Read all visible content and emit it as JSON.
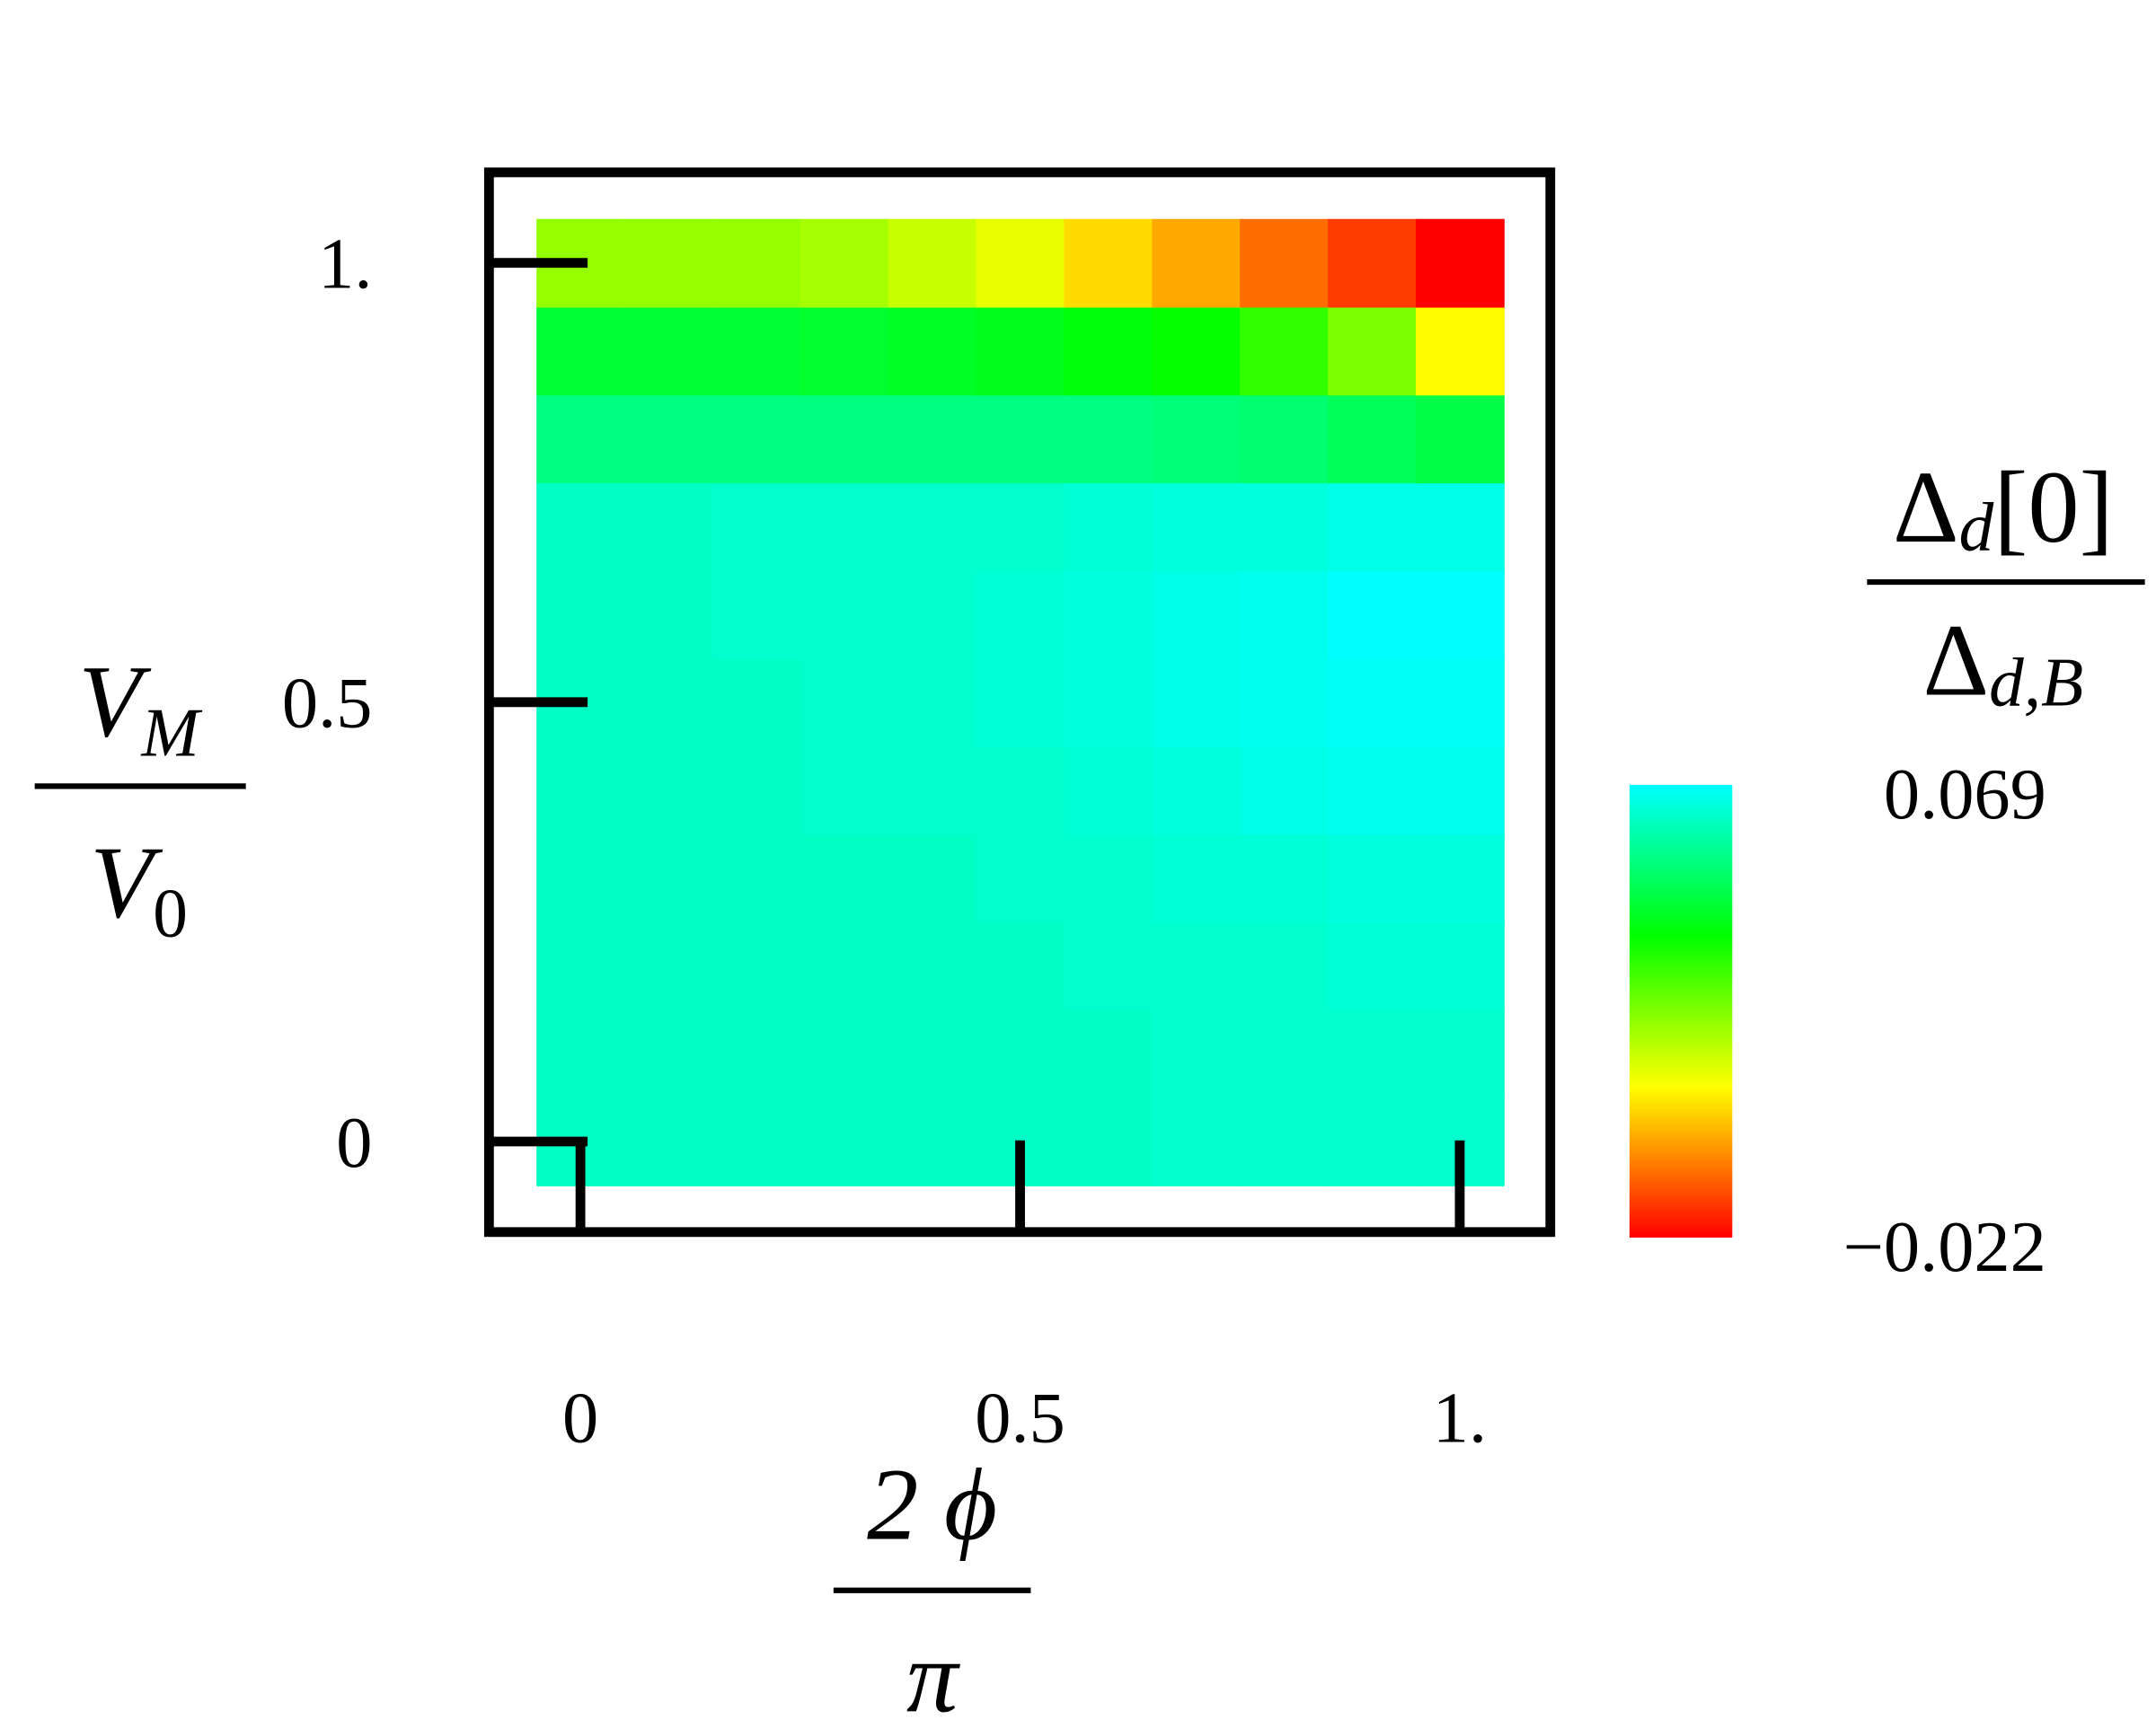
{
  "chart_data": {
    "type": "heatmap",
    "x": [
      0,
      0.1,
      0.2,
      0.3,
      0.4,
      0.5,
      0.6,
      0.7,
      0.8,
      0.9,
      1
    ],
    "y": [
      0,
      0.1,
      0.2,
      0.3,
      0.4,
      0.5,
      0.6,
      0.7,
      0.8,
      0.9,
      1
    ],
    "z": [
      [
        0.062,
        0.062,
        0.062,
        0.062,
        0.062,
        0.062,
        0.062,
        0.063,
        0.063,
        0.063,
        0.063
      ],
      [
        0.062,
        0.062,
        0.062,
        0.062,
        0.062,
        0.062,
        0.062,
        0.063,
        0.063,
        0.063,
        0.063
      ],
      [
        0.062,
        0.062,
        0.062,
        0.062,
        0.062,
        0.062,
        0.063,
        0.063,
        0.063,
        0.064,
        0.064
      ],
      [
        0.062,
        0.062,
        0.062,
        0.062,
        0.062,
        0.063,
        0.063,
        0.064,
        0.064,
        0.065,
        0.065
      ],
      [
        0.062,
        0.062,
        0.062,
        0.063,
        0.063,
        0.063,
        0.064,
        0.065,
        0.066,
        0.067,
        0.067
      ],
      [
        0.062,
        0.062,
        0.062,
        0.063,
        0.063,
        0.064,
        0.065,
        0.066,
        0.067,
        0.068,
        0.068
      ],
      [
        0.062,
        0.062,
        0.063,
        0.063,
        0.063,
        0.064,
        0.065,
        0.066,
        0.067,
        0.069,
        0.069
      ],
      [
        0.062,
        0.062,
        0.063,
        0.063,
        0.063,
        0.063,
        0.064,
        0.065,
        0.065,
        0.066,
        0.066
      ],
      [
        0.054,
        0.054,
        0.054,
        0.054,
        0.054,
        0.054,
        0.054,
        0.053,
        0.052,
        0.049,
        0.047
      ],
      [
        0.045,
        0.045,
        0.045,
        0.044,
        0.043,
        0.042,
        0.04,
        0.038,
        0.033,
        0.024,
        0.008
      ],
      [
        0.021,
        0.021,
        0.021,
        0.019,
        0.015,
        0.011,
        0.004,
        -0.002,
        -0.009,
        -0.015,
        -0.022
      ]
    ],
    "xlim": [
      -0.104,
      1.103
    ],
    "ylim": [
      -0.103,
      1.103
    ],
    "xticks": [
      0,
      0.5,
      {
        "value": 1,
        "label": "1."
      }
    ],
    "yticks": [
      0,
      0.5,
      {
        "value": 1,
        "label": "1."
      }
    ],
    "xlabel": {
      "numerator": "2 ϕ",
      "denominator": "π"
    },
    "ylabel": {
      "numerator": [
        "V",
        "M"
      ],
      "denominator": [
        "V",
        "0"
      ]
    },
    "colorbar": {
      "label": {
        "numerator": [
          "Δ",
          "d",
          "[0]"
        ],
        "denominator": [
          "Δ",
          "d,B"
        ]
      },
      "clim": [
        -0.022,
        0.069
      ],
      "ticks": [
        0.069,
        {
          "value": -0.022,
          "label": "−0.022"
        }
      ]
    },
    "colormap": [
      "#00ffff",
      "#00ff00",
      "#ffff00",
      "#ff0000"
    ]
  }
}
